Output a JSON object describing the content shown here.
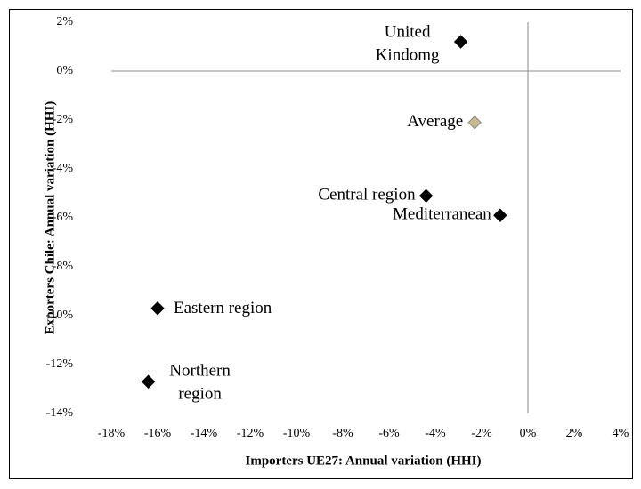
{
  "chart_data": {
    "type": "scatter",
    "x_label": "Importers UE27: Annual variation (HHI)",
    "y_label": "Exporters Chile: Annual variation (HHI)",
    "x": [
      -2.9,
      -2.3,
      -4.4,
      -1.2,
      -16.0,
      -16.4
    ],
    "values": [
      1.2,
      -2.1,
      -5.1,
      -5.9,
      -9.7,
      -12.7
    ],
    "labels": [
      [
        "United",
        "Kindomg"
      ],
      [
        "Average"
      ],
      [
        "Central region"
      ],
      [
        "Mediterranean"
      ],
      [
        "Eastern region"
      ],
      [
        "Northern",
        "region"
      ]
    ],
    "colors": [
      "#000000",
      "#c9b98f",
      "#000000",
      "#000000",
      "#000000",
      "#000000"
    ],
    "xlim": [
      -18,
      4
    ],
    "xticks": [
      {
        "value": -18,
        "label": "-18%"
      },
      {
        "value": -16,
        "label": "-16%"
      },
      {
        "value": -14,
        "label": "-14%"
      },
      {
        "value": -12,
        "label": "-12%"
      },
      {
        "value": -10,
        "label": "-10%"
      },
      {
        "value": -8,
        "label": "-8%"
      },
      {
        "value": -6,
        "label": "-6%"
      },
      {
        "value": -4,
        "label": "-4%"
      },
      {
        "value": -2,
        "label": "-2%"
      },
      {
        "value": 0,
        "label": "0%"
      },
      {
        "value": 2,
        "label": "2%"
      },
      {
        "value": 4,
        "label": "4%"
      }
    ],
    "ylim": [
      -14,
      2
    ],
    "yticks": [
      {
        "value": 2,
        "label": "2%"
      },
      {
        "value": 0,
        "label": "0%"
      },
      {
        "value": -2,
        "label": "-2%"
      },
      {
        "value": -4,
        "label": "-4%"
      },
      {
        "value": -6,
        "label": "-6%"
      },
      {
        "value": -8,
        "label": "-8%"
      },
      {
        "value": -10,
        "label": "-10%"
      },
      {
        "value": -12,
        "label": "-12%"
      },
      {
        "value": -14,
        "label": "-14%"
      }
    ]
  }
}
